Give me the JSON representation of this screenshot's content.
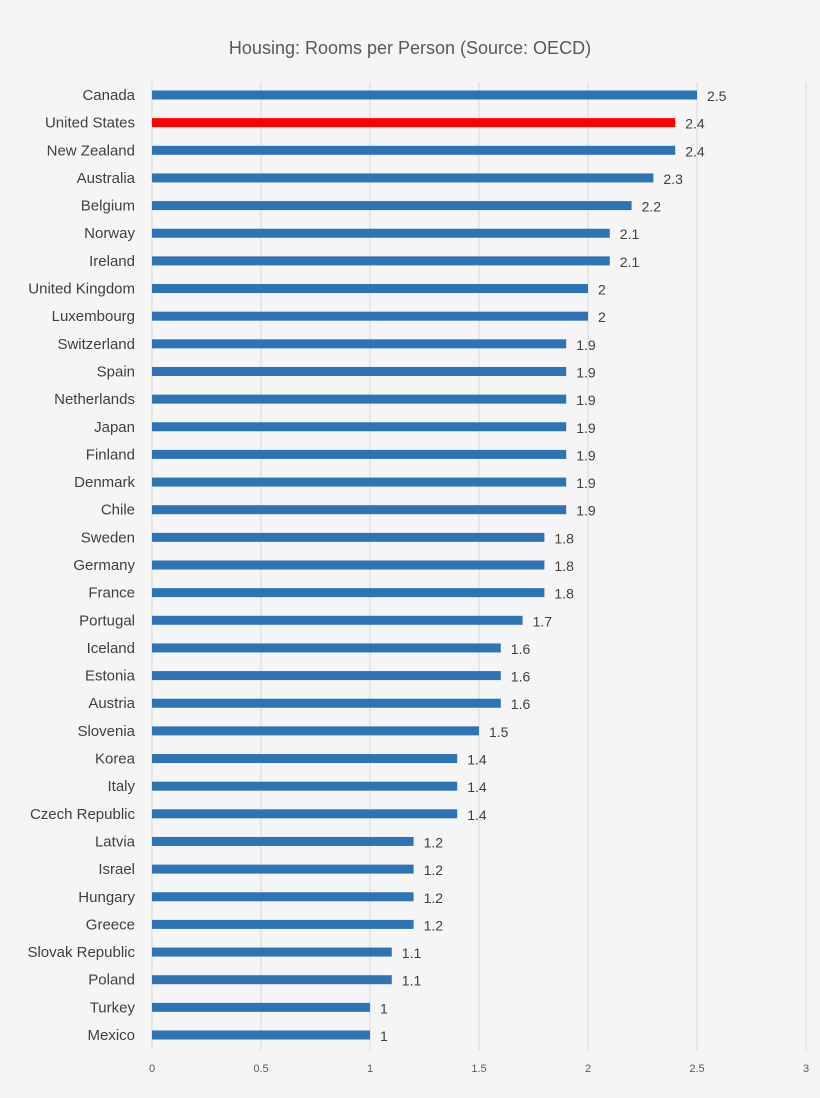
{
  "chart_data": {
    "type": "bar",
    "orientation": "horizontal",
    "title": "Housing: Rooms per Person (Source: OECD)",
    "xlabel": "",
    "ylabel": "",
    "xlim": [
      0,
      3
    ],
    "x_ticks": [
      "0",
      "0.5",
      "1",
      "1.5",
      "2",
      "2.5",
      "3"
    ],
    "grid": "vertical",
    "legend": "none",
    "data_labels": true,
    "colors": {
      "default": "#2e74b5",
      "highlight": "#ff0000",
      "grid": "#d9d9d9"
    },
    "highlight": "United States",
    "categories": [
      "Canada",
      "United States",
      "New Zealand",
      "Australia",
      "Belgium",
      "Norway",
      "Ireland",
      "United Kingdom",
      "Luxembourg",
      "Switzerland",
      "Spain",
      "Netherlands",
      "Japan",
      "Finland",
      "Denmark",
      "Chile",
      "Sweden",
      "Germany",
      "France",
      "Portugal",
      "Iceland",
      "Estonia",
      "Austria",
      "Slovenia",
      "Korea",
      "Italy",
      "Czech Republic",
      "Latvia",
      "Israel",
      "Hungary",
      "Greece",
      "Slovak Republic",
      "Poland",
      "Turkey",
      "Mexico"
    ],
    "values": [
      2.5,
      2.4,
      2.4,
      2.3,
      2.2,
      2.1,
      2.1,
      2,
      2,
      1.9,
      1.9,
      1.9,
      1.9,
      1.9,
      1.9,
      1.9,
      1.8,
      1.8,
      1.8,
      1.7,
      1.6,
      1.6,
      1.6,
      1.5,
      1.4,
      1.4,
      1.4,
      1.2,
      1.2,
      1.2,
      1.2,
      1.1,
      1.1,
      1,
      1
    ]
  }
}
